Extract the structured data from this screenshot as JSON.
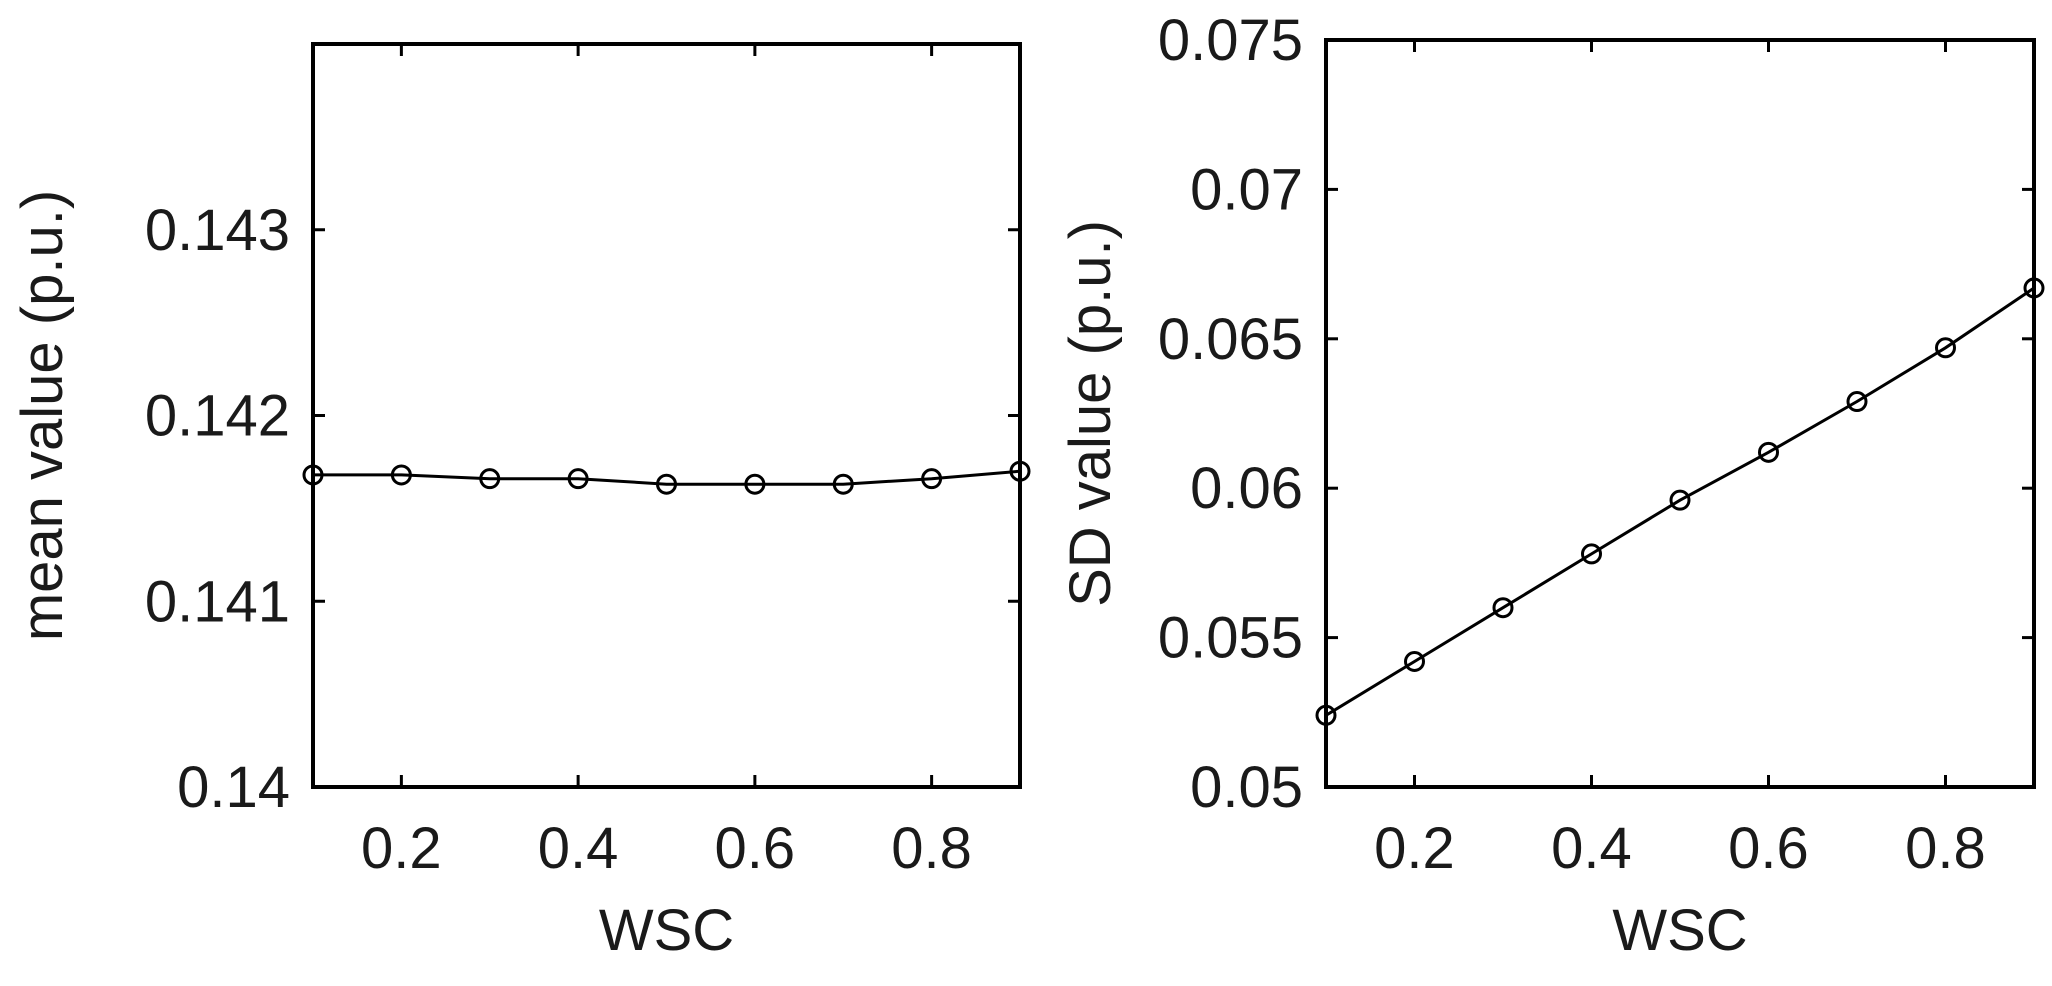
{
  "chart_data": [
    {
      "type": "line",
      "xlabel": "WSC",
      "ylabel": "mean value (p.u.)",
      "xlim": [
        0.1,
        0.9
      ],
      "ylim": [
        0.14,
        0.144
      ],
      "xticks": [
        0.2,
        0.4,
        0.6,
        0.8
      ],
      "xtick_labels": [
        "0.2",
        "0.4",
        "0.6",
        "0.8"
      ],
      "yticks": [
        0.14,
        0.141,
        0.142,
        0.143
      ],
      "ytick_labels": [
        "0.14",
        "0.141",
        "0.142",
        "0.143"
      ],
      "grid": false,
      "marker": "circle",
      "x": [
        0.1,
        0.2,
        0.3,
        0.4,
        0.5,
        0.6,
        0.7,
        0.8,
        0.9
      ],
      "y": [
        0.14168,
        0.14168,
        0.14166,
        0.14166,
        0.14163,
        0.14163,
        0.14163,
        0.14166,
        0.1417
      ]
    },
    {
      "type": "line",
      "xlabel": "WSC",
      "ylabel": "SD value (p.u.)",
      "xlim": [
        0.1,
        0.9
      ],
      "ylim": [
        0.05,
        0.075
      ],
      "xticks": [
        0.2,
        0.4,
        0.6,
        0.8
      ],
      "xtick_labels": [
        "0.2",
        "0.4",
        "0.6",
        "0.8"
      ],
      "yticks": [
        0.05,
        0.055,
        0.06,
        0.065,
        0.07,
        0.075
      ],
      "ytick_labels": [
        "0.05",
        "0.055",
        "0.06",
        "0.065",
        "0.07",
        "0.075"
      ],
      "grid": false,
      "marker": "circle",
      "x": [
        0.1,
        0.2,
        0.3,
        0.4,
        0.5,
        0.6,
        0.7,
        0.8,
        0.9
      ],
      "y": [
        0.0524,
        0.0542,
        0.056,
        0.0578,
        0.0596,
        0.0612,
        0.0629,
        0.0647,
        0.0667
      ]
    }
  ]
}
